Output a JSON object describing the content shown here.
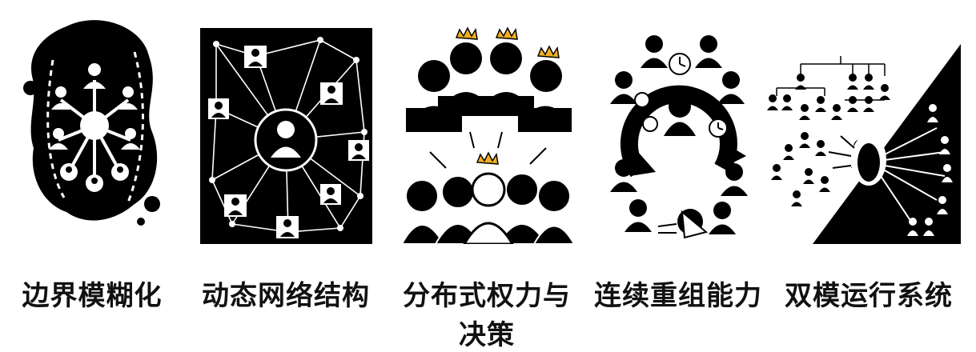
{
  "panels": [
    {
      "id": "boundary-blurring",
      "icon": "blob-network-icon",
      "caption": "边界模糊化"
    },
    {
      "id": "dynamic-network",
      "icon": "web-network-icon",
      "caption": "动态网络结构"
    },
    {
      "id": "distributed-decision",
      "icon": "crowned-people-icon",
      "caption": "分布式权力与决策"
    },
    {
      "id": "continuous-reorg",
      "icon": "clock-cycle-icon",
      "caption": "连续重组能力"
    },
    {
      "id": "dual-mode",
      "icon": "dual-hierarchy-icon",
      "caption": "双模运行系统"
    }
  ],
  "colors": {
    "ink": "#000000",
    "paper": "#ffffff",
    "crown": "#f2b01e"
  }
}
